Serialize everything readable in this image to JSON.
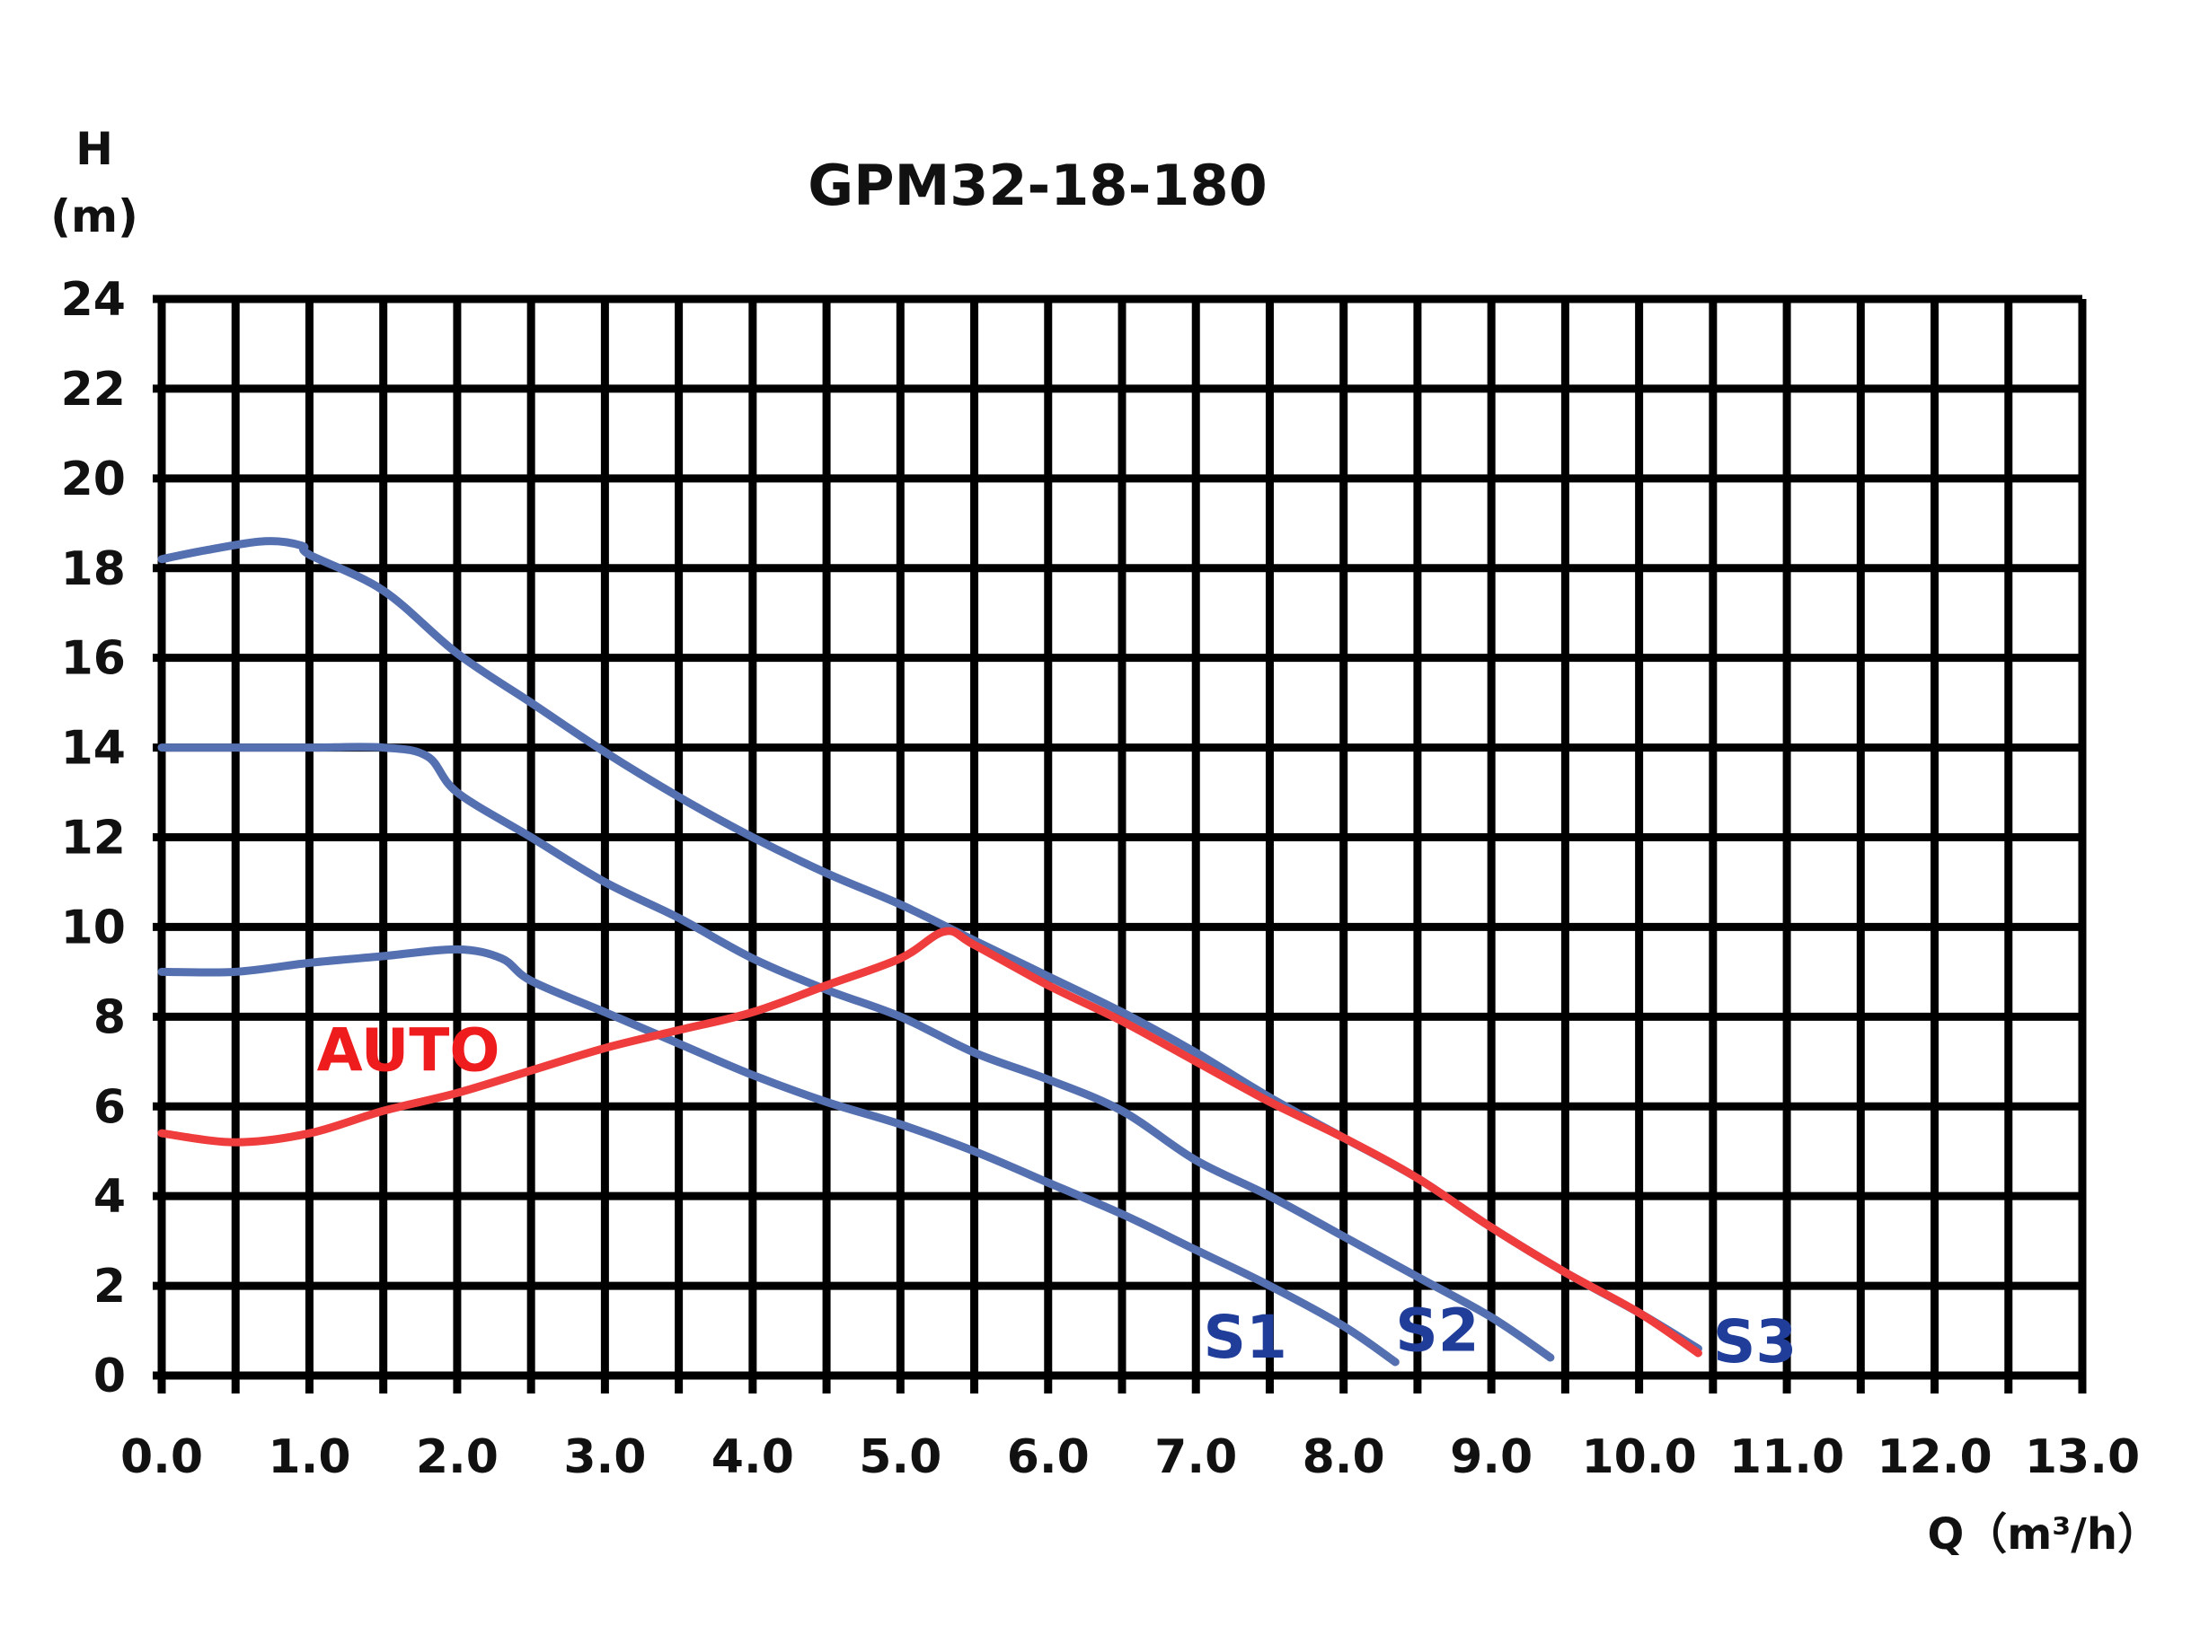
{
  "chart_data": {
    "type": "line",
    "title": "GPM32-18-180",
    "ylabel_line1": "H",
    "ylabel_line2": "(m)",
    "xlabel": "Q（m³/h）",
    "xlim": [
      0,
      13
    ],
    "ylim": [
      0,
      24
    ],
    "grid": true,
    "x_ticks": [
      "0.0",
      "1.0",
      "2.0",
      "3.0",
      "4.0",
      "5.0",
      "6.0",
      "7.0",
      "8.0",
      "9.0",
      "10.0",
      "11.0",
      "12.0",
      "13.0"
    ],
    "y_ticks": [
      "0",
      "2",
      "4",
      "6",
      "8",
      "10",
      "12",
      "14",
      "16",
      "18",
      "20",
      "22",
      "24"
    ],
    "series": [
      {
        "name": "S1",
        "color": "#5470b0",
        "label_color": "#1f3d99",
        "label_pos": [
          7.05,
          0.4
        ],
        "points": [
          [
            0.0,
            9.0
          ],
          [
            0.5,
            9.0
          ],
          [
            1.0,
            9.2
          ],
          [
            1.5,
            9.35
          ],
          [
            2.0,
            9.5
          ],
          [
            2.3,
            9.3
          ],
          [
            2.5,
            8.8
          ],
          [
            3.0,
            8.1
          ],
          [
            3.5,
            7.4
          ],
          [
            4.0,
            6.7
          ],
          [
            4.5,
            6.1
          ],
          [
            5.0,
            5.6
          ],
          [
            5.5,
            5.0
          ],
          [
            6.0,
            4.3
          ],
          [
            6.5,
            3.6
          ],
          [
            7.0,
            2.8
          ],
          [
            7.5,
            2.0
          ],
          [
            8.0,
            1.1
          ],
          [
            8.35,
            0.3
          ]
        ]
      },
      {
        "name": "S2",
        "color": "#5470b0",
        "label_color": "#1f3d99",
        "label_pos": [
          8.35,
          0.55
        ],
        "points": [
          [
            0.0,
            14.0
          ],
          [
            0.5,
            14.0
          ],
          [
            1.0,
            14.0
          ],
          [
            1.5,
            14.0
          ],
          [
            1.8,
            13.8
          ],
          [
            2.0,
            13.0
          ],
          [
            2.5,
            12.0
          ],
          [
            3.0,
            11.0
          ],
          [
            3.5,
            10.2
          ],
          [
            4.0,
            9.3
          ],
          [
            4.5,
            8.6
          ],
          [
            5.0,
            8.0
          ],
          [
            5.5,
            7.2
          ],
          [
            6.0,
            6.6
          ],
          [
            6.5,
            5.9
          ],
          [
            7.0,
            4.8
          ],
          [
            7.5,
            4.0
          ],
          [
            8.0,
            3.1
          ],
          [
            8.5,
            2.2
          ],
          [
            9.0,
            1.3
          ],
          [
            9.4,
            0.4
          ]
        ]
      },
      {
        "name": "S3",
        "color": "#5470b0",
        "label_color": "#1f3d99",
        "label_pos": [
          10.5,
          0.3
        ],
        "points": [
          [
            0.0,
            18.2
          ],
          [
            0.3,
            18.4
          ],
          [
            0.7,
            18.6
          ],
          [
            0.95,
            18.5
          ],
          [
            1.0,
            18.3
          ],
          [
            1.5,
            17.5
          ],
          [
            2.0,
            16.1
          ],
          [
            2.5,
            15.0
          ],
          [
            3.0,
            13.9
          ],
          [
            3.5,
            12.9
          ],
          [
            4.0,
            12.0
          ],
          [
            4.5,
            11.2
          ],
          [
            5.0,
            10.5
          ],
          [
            5.5,
            9.7
          ],
          [
            6.0,
            8.9
          ],
          [
            6.5,
            8.1
          ],
          [
            7.0,
            7.2
          ],
          [
            7.5,
            6.2
          ],
          [
            8.0,
            5.3
          ],
          [
            8.5,
            4.4
          ],
          [
            9.0,
            3.3
          ],
          [
            9.5,
            2.3
          ],
          [
            10.0,
            1.4
          ],
          [
            10.4,
            0.6
          ]
        ]
      },
      {
        "name": "AUTO",
        "color": "#ef3c3c",
        "label_color": "#ee1c1c",
        "label_pos": [
          1.05,
          6.8
        ],
        "points": [
          [
            0.0,
            5.4
          ],
          [
            0.5,
            5.2
          ],
          [
            1.0,
            5.4
          ],
          [
            1.5,
            5.9
          ],
          [
            2.0,
            6.3
          ],
          [
            2.5,
            6.8
          ],
          [
            3.0,
            7.3
          ],
          [
            3.5,
            7.7
          ],
          [
            4.0,
            8.1
          ],
          [
            4.5,
            8.7
          ],
          [
            5.0,
            9.3
          ],
          [
            5.3,
            9.9
          ],
          [
            5.5,
            9.6
          ],
          [
            6.0,
            8.7
          ],
          [
            6.5,
            7.9
          ],
          [
            7.0,
            7.0
          ],
          [
            7.5,
            6.1
          ],
          [
            8.0,
            5.3
          ],
          [
            8.5,
            4.4
          ],
          [
            9.0,
            3.3
          ],
          [
            9.5,
            2.3
          ],
          [
            10.0,
            1.4
          ],
          [
            10.4,
            0.5
          ]
        ]
      }
    ]
  }
}
